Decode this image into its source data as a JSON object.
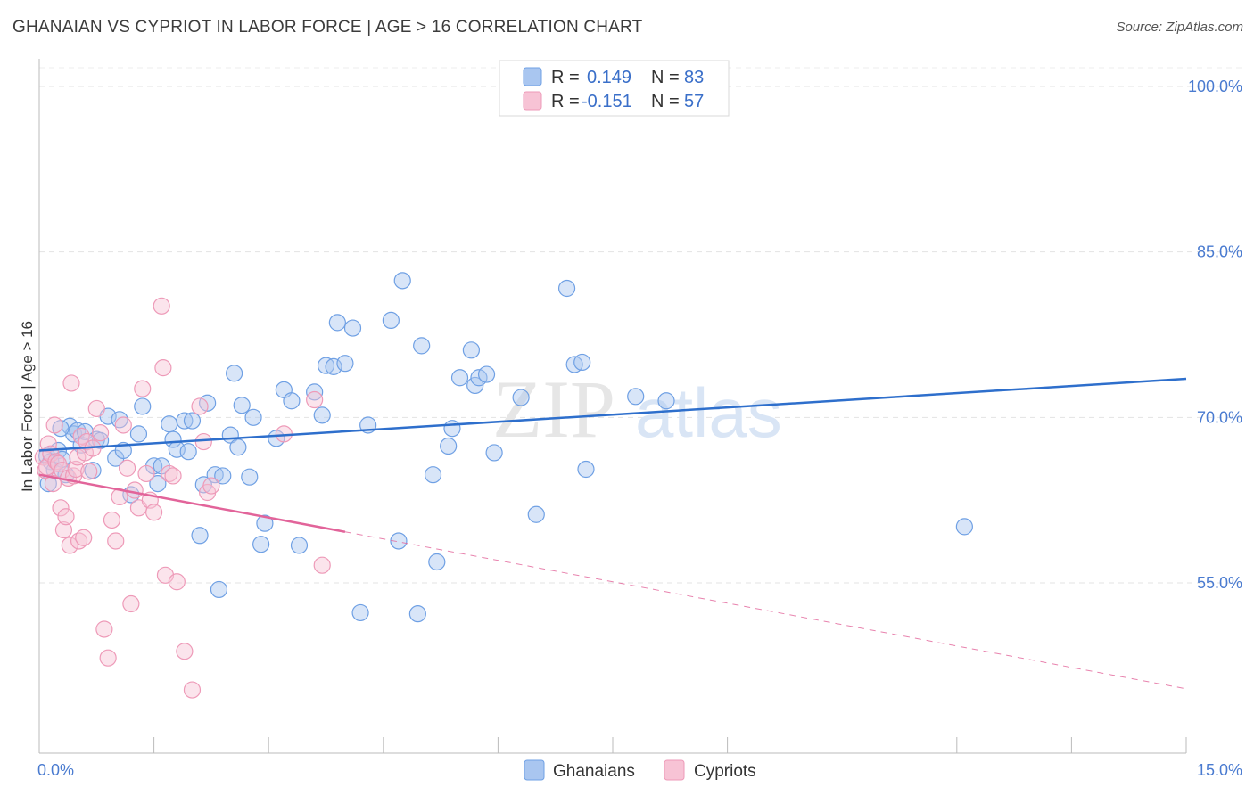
{
  "title": "GHANAIAN VS CYPRIOT IN LABOR FORCE | AGE > 16 CORRELATION CHART",
  "source": "Source: ZipAtlas.com",
  "watermark": {
    "zip": "ZIP",
    "atlas": "atlas"
  },
  "chart_data": {
    "type": "scatter",
    "xlabel": "",
    "ylabel": "In Labor Force | Age > 16",
    "xlim": [
      0,
      15
    ],
    "ylim": [
      40,
      103
    ],
    "x_tick_labels": [
      {
        "value": 0,
        "label": "0.0%"
      },
      {
        "value": 15,
        "label": "15.0%"
      }
    ],
    "x_minor_ticks": [
      0,
      1.5,
      3,
      4.5,
      6,
      7.5,
      9,
      12,
      13.5,
      15
    ],
    "y_ticks": [
      {
        "value": 100,
        "label": "100.0%"
      },
      {
        "value": 85,
        "label": "85.0%"
      },
      {
        "value": 70,
        "label": "70.0%"
      },
      {
        "value": 55,
        "label": "55.0%"
      }
    ],
    "legend": {
      "position": "top-center",
      "entries": [
        {
          "r_label": "R =",
          "r_value": "0.149",
          "n_label": "N =",
          "n_value": "83"
        },
        {
          "r_label": "R =",
          "r_value": "-0.151",
          "n_label": "N =",
          "n_value": "57"
        }
      ]
    },
    "series": [
      {
        "name": "Ghanaians",
        "color": "#6fa0e4",
        "fill": "#a9c6f0",
        "line_color": "#2e6fcc",
        "trend": {
          "x0": 0,
          "y0": 67.0,
          "x1": 15,
          "y1": 73.5,
          "dashed_from": null
        },
        "points": [
          [
            0.1,
            66.5
          ],
          [
            0.15,
            66.0
          ],
          [
            0.2,
            65.2
          ],
          [
            0.25,
            67.0
          ],
          [
            0.3,
            66.2
          ],
          [
            0.35,
            64.8
          ],
          [
            0.4,
            69.2
          ],
          [
            0.45,
            68.5
          ],
          [
            0.5,
            68.8
          ],
          [
            0.55,
            67.5
          ],
          [
            0.6,
            68.7
          ],
          [
            0.7,
            65.2
          ],
          [
            0.75,
            68.0
          ],
          [
            0.8,
            67.9
          ],
          [
            0.9,
            70.1
          ],
          [
            1.0,
            66.3
          ],
          [
            1.05,
            69.8
          ],
          [
            1.1,
            67.0
          ],
          [
            1.2,
            63.0
          ],
          [
            1.3,
            68.5
          ],
          [
            1.35,
            71.0
          ],
          [
            1.5,
            65.6
          ],
          [
            1.55,
            64.0
          ],
          [
            1.6,
            65.6
          ],
          [
            1.7,
            69.4
          ],
          [
            1.75,
            68.0
          ],
          [
            1.8,
            67.1
          ],
          [
            1.9,
            69.7
          ],
          [
            1.95,
            66.9
          ],
          [
            2.0,
            69.7
          ],
          [
            2.1,
            59.3
          ],
          [
            2.15,
            63.9
          ],
          [
            2.2,
            71.3
          ],
          [
            2.3,
            64.8
          ],
          [
            2.35,
            54.4
          ],
          [
            2.4,
            64.7
          ],
          [
            2.5,
            68.4
          ],
          [
            2.55,
            74.0
          ],
          [
            2.6,
            67.3
          ],
          [
            2.65,
            71.1
          ],
          [
            2.75,
            64.6
          ],
          [
            2.8,
            70.0
          ],
          [
            2.9,
            58.5
          ],
          [
            2.95,
            60.4
          ],
          [
            3.1,
            68.1
          ],
          [
            3.2,
            72.5
          ],
          [
            3.3,
            71.5
          ],
          [
            3.4,
            58.4
          ],
          [
            3.6,
            72.3
          ],
          [
            3.7,
            70.2
          ],
          [
            3.75,
            74.7
          ],
          [
            3.85,
            74.6
          ],
          [
            3.9,
            78.6
          ],
          [
            4.0,
            74.9
          ],
          [
            4.1,
            78.1
          ],
          [
            4.2,
            52.3
          ],
          [
            4.3,
            69.3
          ],
          [
            4.6,
            78.8
          ],
          [
            4.7,
            58.8
          ],
          [
            4.75,
            82.4
          ],
          [
            4.95,
            52.2
          ],
          [
            5.0,
            76.5
          ],
          [
            5.15,
            64.8
          ],
          [
            5.2,
            56.9
          ],
          [
            5.35,
            67.4
          ],
          [
            5.4,
            69.0
          ],
          [
            5.5,
            73.6
          ],
          [
            5.65,
            76.1
          ],
          [
            5.7,
            72.9
          ],
          [
            5.75,
            73.6
          ],
          [
            5.85,
            73.9
          ],
          [
            5.95,
            66.8
          ],
          [
            6.3,
            71.8
          ],
          [
            6.5,
            61.2
          ],
          [
            6.9,
            81.7
          ],
          [
            7.0,
            74.8
          ],
          [
            7.1,
            75.0
          ],
          [
            7.15,
            65.3
          ],
          [
            7.8,
            71.9
          ],
          [
            8.2,
            71.5
          ],
          [
            12.1,
            60.1
          ],
          [
            0.12,
            64.0
          ],
          [
            0.28,
            69.0
          ]
        ]
      },
      {
        "name": "Cypriots",
        "color": "#ee9ab8",
        "fill": "#f7c3d5",
        "line_color": "#e2649a",
        "trend": {
          "x0": 0,
          "y0": 64.8,
          "x1": 15,
          "y1": 45.4,
          "dashed_from": 4.0
        },
        "points": [
          [
            0.05,
            66.4
          ],
          [
            0.08,
            65.2
          ],
          [
            0.1,
            65.5
          ],
          [
            0.12,
            67.6
          ],
          [
            0.15,
            66.7
          ],
          [
            0.18,
            64.0
          ],
          [
            0.2,
            69.3
          ],
          [
            0.22,
            66.0
          ],
          [
            0.25,
            65.8
          ],
          [
            0.28,
            61.8
          ],
          [
            0.3,
            65.2
          ],
          [
            0.32,
            59.8
          ],
          [
            0.35,
            61.0
          ],
          [
            0.38,
            64.5
          ],
          [
            0.4,
            58.4
          ],
          [
            0.42,
            73.1
          ],
          [
            0.45,
            64.7
          ],
          [
            0.48,
            65.3
          ],
          [
            0.5,
            66.4
          ],
          [
            0.52,
            58.8
          ],
          [
            0.55,
            68.3
          ],
          [
            0.58,
            59.1
          ],
          [
            0.6,
            66.8
          ],
          [
            0.62,
            67.8
          ],
          [
            0.65,
            65.1
          ],
          [
            0.7,
            67.2
          ],
          [
            0.75,
            70.8
          ],
          [
            0.8,
            68.6
          ],
          [
            0.85,
            50.8
          ],
          [
            0.9,
            48.2
          ],
          [
            0.95,
            60.7
          ],
          [
            1.0,
            58.8
          ],
          [
            1.05,
            62.8
          ],
          [
            1.1,
            69.3
          ],
          [
            1.15,
            65.4
          ],
          [
            1.2,
            53.1
          ],
          [
            1.25,
            63.4
          ],
          [
            1.3,
            61.8
          ],
          [
            1.35,
            72.6
          ],
          [
            1.4,
            64.9
          ],
          [
            1.45,
            62.5
          ],
          [
            1.5,
            61.4
          ],
          [
            1.6,
            80.1
          ],
          [
            1.62,
            74.5
          ],
          [
            1.65,
            55.7
          ],
          [
            1.7,
            64.9
          ],
          [
            1.75,
            64.7
          ],
          [
            1.8,
            55.1
          ],
          [
            1.9,
            48.8
          ],
          [
            2.0,
            45.3
          ],
          [
            2.1,
            71.0
          ],
          [
            2.15,
            67.8
          ],
          [
            2.2,
            63.2
          ],
          [
            2.25,
            63.8
          ],
          [
            3.2,
            68.5
          ],
          [
            3.6,
            71.6
          ],
          [
            3.7,
            56.6
          ]
        ]
      }
    ]
  },
  "bottom_legend": {
    "items": [
      "Ghanaians",
      "Cypriots"
    ]
  }
}
